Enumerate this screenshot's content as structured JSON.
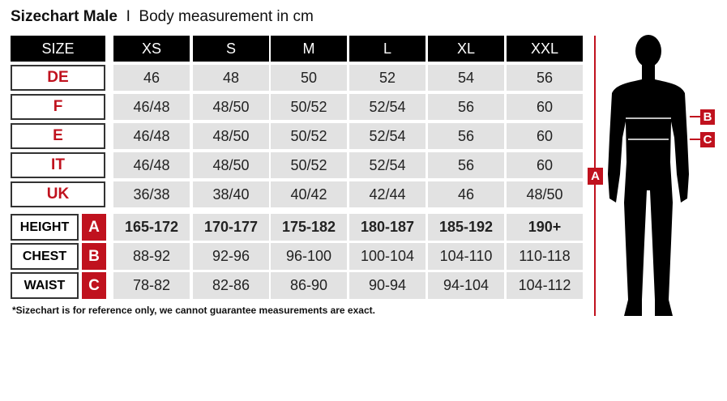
{
  "title": {
    "bold": "Sizechart Male",
    "separator": "I",
    "subtitle": "Body measurement in cm"
  },
  "header": {
    "label": "SIZE",
    "sizes": [
      "XS",
      "S",
      "M",
      "L",
      "XL",
      "XXL"
    ]
  },
  "size_rows": [
    {
      "label": "DE",
      "values": [
        "46",
        "48",
        "50",
        "52",
        "54",
        "56"
      ]
    },
    {
      "label": "F",
      "values": [
        "46/48",
        "48/50",
        "50/52",
        "52/54",
        "56",
        "60"
      ]
    },
    {
      "label": "E",
      "values": [
        "46/48",
        "48/50",
        "50/52",
        "52/54",
        "56",
        "60"
      ]
    },
    {
      "label": "IT",
      "values": [
        "46/48",
        "48/50",
        "50/52",
        "52/54",
        "56",
        "60"
      ]
    },
    {
      "label": "UK",
      "values": [
        "36/38",
        "38/40",
        "40/42",
        "42/44",
        "46",
        "48/50"
      ]
    }
  ],
  "measure_rows": [
    {
      "label": "HEIGHT",
      "letter": "A",
      "values": [
        "165-172",
        "170-177",
        "175-182",
        "180-187",
        "185-192",
        "190+"
      ]
    },
    {
      "label": "CHEST",
      "letter": "B",
      "values": [
        "88-92",
        "92-96",
        "96-100",
        "100-104",
        "104-110",
        "110-118"
      ]
    },
    {
      "label": "WAIST",
      "letter": "C",
      "values": [
        "78-82",
        "82-86",
        "86-90",
        "90-94",
        "94-104",
        "104-112"
      ]
    }
  ],
  "figure": {
    "markers": [
      "A",
      "B",
      "C"
    ],
    "accent": "#c0121e"
  },
  "footnote": "*Sizechart is for reference only, we cannot guarantee measurements are exact."
}
